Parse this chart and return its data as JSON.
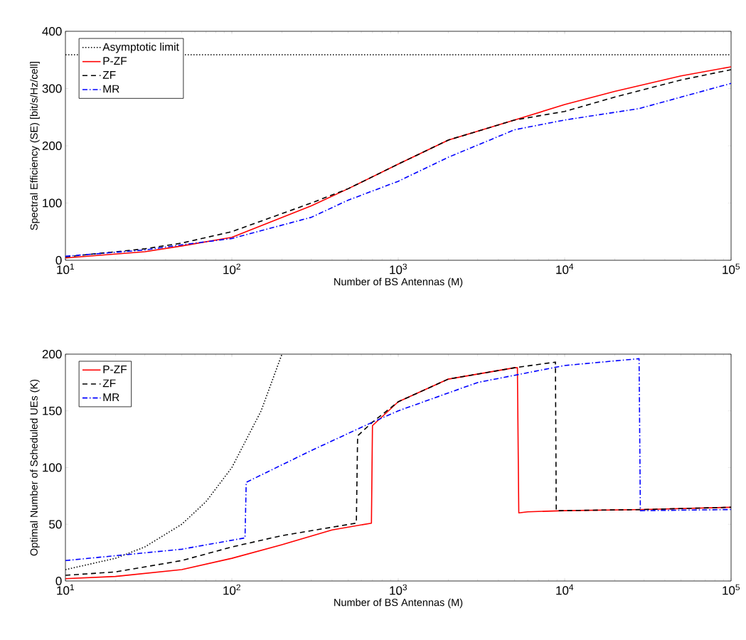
{
  "chart_data": [
    {
      "type": "line",
      "xlabel": "Number of BS Antennas (M)",
      "ylabel": "Spectral Efficiency (SE) [bit/s/Hz/cell]",
      "log": "x",
      "xlim": [
        10,
        100000
      ],
      "ylim": [
        0,
        400
      ],
      "xticks": [
        {
          "value": 10,
          "label": "10$^{1}$"
        },
        {
          "value": 100,
          "label": "10$^{2}$"
        },
        {
          "value": 1000,
          "label": "10$^{3}$"
        },
        {
          "value": 10000,
          "label": "10$^{4}$"
        },
        {
          "value": 100000,
          "label": "10$^{5}$"
        }
      ],
      "yticks": [
        0,
        100,
        200,
        300,
        400
      ],
      "legend": "top left",
      "series": [
        {
          "name": "Asymptotic limit",
          "color": "#000000",
          "line_style": "dotted",
          "x": [
            10,
            100000
          ],
          "values": [
            359,
            359
          ]
        },
        {
          "name": "P-ZF",
          "color": "#ff0000",
          "line_style": "solid",
          "x": [
            10,
            30,
            50,
            100,
            300,
            500,
            1000,
            2000,
            5000,
            10000,
            20000,
            50000,
            100000
          ],
          "values": [
            4,
            15,
            25,
            40,
            95,
            125,
            168,
            210,
            245,
            272,
            295,
            322,
            338
          ]
        },
        {
          "name": "ZF",
          "color": "#000000",
          "line_style": "dashed",
          "x": [
            10,
            30,
            50,
            100,
            300,
            500,
            1000,
            2000,
            5000,
            10000,
            20000,
            50000,
            100000
          ],
          "values": [
            6,
            20,
            30,
            50,
            100,
            125,
            168,
            210,
            245,
            260,
            285,
            315,
            333
          ]
        },
        {
          "name": "MR",
          "color": "#0000ff",
          "line_style": "dash dot",
          "x": [
            10,
            30,
            50,
            100,
            300,
            500,
            1000,
            2000,
            5000,
            10000,
            28000,
            50000,
            100000
          ],
          "values": [
            7,
            18,
            27,
            38,
            75,
            105,
            138,
            180,
            228,
            245,
            265,
            285,
            309
          ]
        }
      ]
    },
    {
      "type": "line",
      "xlabel": "Number of BS Antennas (M)",
      "ylabel": "Optimal Number of Scheduled UEs (K)",
      "log": "x",
      "xlim": [
        10,
        100000
      ],
      "ylim": [
        0,
        200
      ],
      "xticks": [
        {
          "value": 10,
          "label": "10$^{1}$"
        },
        {
          "value": 100,
          "label": "10$^{2}$"
        },
        {
          "value": 1000,
          "label": "10$^{3}$"
        },
        {
          "value": 10000,
          "label": "10$^{4}$"
        },
        {
          "value": 100000,
          "label": "10$^{5}$"
        }
      ],
      "yticks": [
        0,
        50,
        100,
        150,
        200
      ],
      "legend": "top left",
      "series": [
        {
          "color": "#000000",
          "line_style": "dotted",
          "x": [
            10,
            20,
            30,
            50,
            70,
            100,
            150,
            200
          ],
          "values": [
            10,
            20,
            30,
            50,
            70,
            100,
            150,
            200
          ]
        },
        {
          "name": "P-ZF",
          "color": "#ff0000",
          "line_style": "solid",
          "x": [
            10,
            20,
            50,
            100,
            200,
            400,
            690,
            700,
            1000,
            2000,
            5000,
            5200,
            5300,
            6000,
            10000,
            30000,
            100000
          ],
          "values": [
            2,
            4,
            10,
            20,
            32,
            45,
            51,
            137,
            158,
            178,
            188,
            188,
            60,
            61,
            62,
            63,
            65
          ]
        },
        {
          "name": "ZF",
          "color": "#000000",
          "line_style": "dashed",
          "x": [
            10,
            20,
            50,
            100,
            200,
            560,
            570,
            700,
            1000,
            2000,
            5000,
            8800,
            8900,
            30000,
            100000
          ],
          "values": [
            5,
            8,
            18,
            30,
            40,
            51,
            128,
            140,
            158,
            178,
            188,
            193,
            62,
            63,
            65
          ]
        },
        {
          "name": "MR",
          "color": "#0000ff",
          "line_style": "dash dot",
          "x": [
            10,
            50,
            120,
            122,
            300,
            700,
            1000,
            3000,
            10000,
            28000,
            28500,
            100000
          ],
          "values": [
            18,
            28,
            38,
            87,
            115,
            140,
            150,
            175,
            190,
            196,
            62,
            63
          ]
        }
      ]
    }
  ]
}
